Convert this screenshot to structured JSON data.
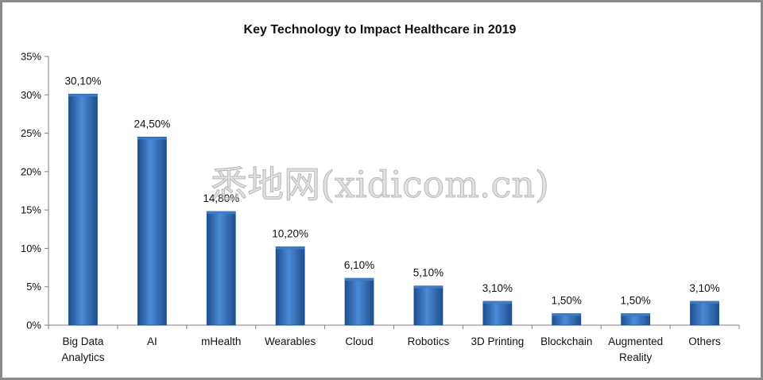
{
  "chart_data": {
    "type": "bar",
    "title": "Key Technology to Impact  Healthcare  in 2019",
    "categories": [
      [
        "Big Data",
        "Analytics"
      ],
      [
        "AI"
      ],
      [
        "mHealth"
      ],
      [
        "Wearables"
      ],
      [
        "Cloud"
      ],
      [
        "Robotics"
      ],
      [
        "3D Printing"
      ],
      [
        "Blockchain"
      ],
      [
        "Augmented",
        "Reality"
      ],
      [
        "Others"
      ]
    ],
    "values": [
      30.1,
      24.5,
      14.8,
      10.2,
      6.1,
      5.1,
      3.1,
      1.5,
      1.5,
      3.1
    ],
    "data_labels": [
      "30,10%",
      "24,50%",
      "14,80%",
      "10,20%",
      "6,10%",
      "5,10%",
      "3,10%",
      "1,50%",
      "1,50%",
      "3,10%"
    ],
    "yticks": [
      0,
      5,
      10,
      15,
      20,
      25,
      30,
      35
    ],
    "ytick_labels": [
      "0%",
      "5%",
      "10%",
      "15%",
      "20%",
      "25%",
      "30%",
      "35%"
    ],
    "ylim": [
      0,
      35
    ],
    "grid": false,
    "legend": "none",
    "bar_color": "#3f7dc8",
    "bar_color_dark": "#1f4f8e"
  },
  "watermark": "悉地网(xidicom.cn)"
}
